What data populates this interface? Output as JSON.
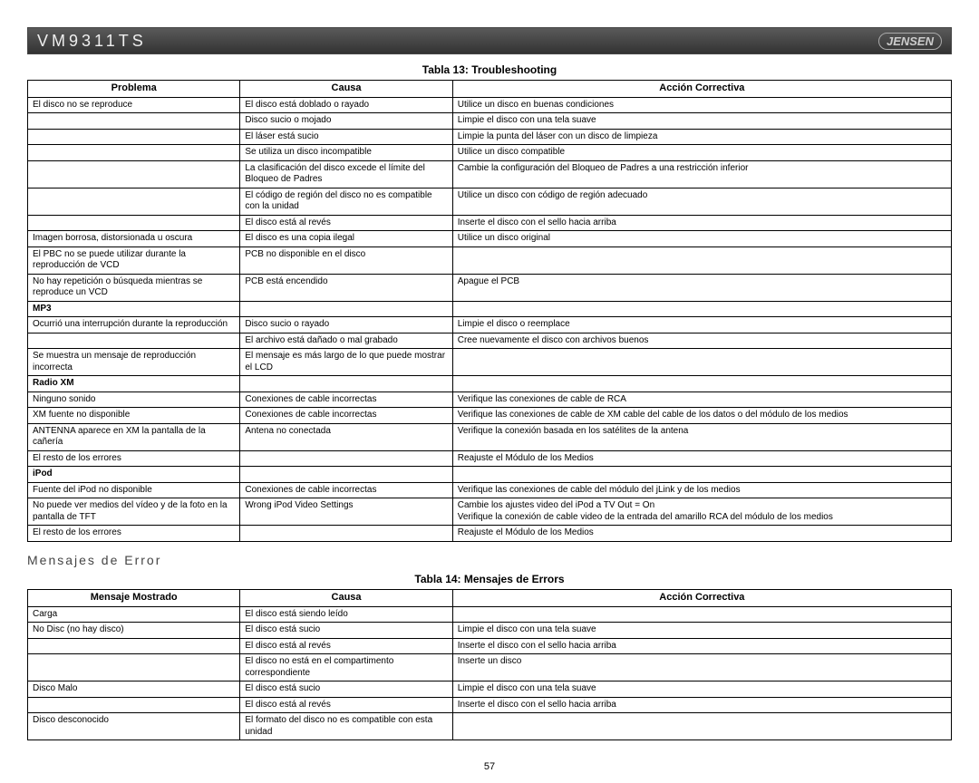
{
  "header": {
    "model": "VM9311TS",
    "logo": "JENSEN"
  },
  "table13": {
    "title": "Tabla 13: Troubleshooting",
    "columns": [
      "Problema",
      "Causa",
      "Acción Correctiva"
    ],
    "rows": [
      {
        "c": [
          "El disco no se reproduce",
          "El disco está doblado o rayado",
          "Utilice un disco en buenas condiciones"
        ]
      },
      {
        "c": [
          "",
          "Disco sucio o mojado",
          "Limpie el disco con una tela suave"
        ]
      },
      {
        "c": [
          "",
          "El láser está sucio",
          "Limpie la punta del láser con un disco de limpieza"
        ]
      },
      {
        "c": [
          "",
          "Se utiliza un disco incompatible",
          "Utilice un disco compatible"
        ]
      },
      {
        "c": [
          "",
          "La clasificación del disco excede el límite del Bloqueo de Padres",
          "Cambie la configuración del Bloqueo de Padres a una restricción inferior"
        ]
      },
      {
        "c": [
          "",
          "El código de región del disco no es compatible con la unidad",
          "Utilice un disco con código de región adecuado"
        ]
      },
      {
        "c": [
          "",
          "El disco está al revés",
          "Inserte el disco con el sello hacia arriba"
        ]
      },
      {
        "c": [
          "Imagen borrosa, distorsionada u oscura",
          "El disco es una copia ilegal",
          "Utilice un disco original"
        ]
      },
      {
        "c": [
          "El PBC no se puede utilizar durante la reproducción de VCD",
          "PCB no disponible en el disco",
          ""
        ]
      },
      {
        "c": [
          "No hay repetición o búsqueda mientras se reproduce un VCD",
          "PCB está encendido",
          "Apague el PCB"
        ]
      },
      {
        "section": true,
        "c": [
          "MP3",
          "",
          ""
        ]
      },
      {
        "c": [
          "Ocurrió una interrupción durante la reproducción",
          "Disco sucio o rayado",
          "Limpie el disco o reemplace"
        ]
      },
      {
        "c": [
          "",
          "El archivo está dañado o mal grabado",
          "Cree nuevamente el disco con archivos buenos"
        ]
      },
      {
        "c": [
          "Se muestra un mensaje de reproducción incorrecta",
          "El mensaje es más largo de lo que puede mostrar el LCD",
          ""
        ]
      },
      {
        "section": true,
        "c": [
          "Radio XM",
          "",
          ""
        ]
      },
      {
        "c": [
          "Ninguno sonido",
          "Conexiones de cable incorrectas",
          "Verifique las conexiones de cable de RCA"
        ]
      },
      {
        "c": [
          "XM fuente no disponible",
          "Conexiones de cable incorrectas",
          "Verifique las conexiones de cable de XM cable del cable de los datos o del módulo de los medios"
        ]
      },
      {
        "c": [
          "ANTENNA aparece en XM la pantalla de la cañería",
          "Antena no conectada",
          "Verifique la conexión basada en los satélites de la antena"
        ]
      },
      {
        "c": [
          "El resto de los errores",
          "",
          "Reajuste el Módulo de los Medios"
        ]
      },
      {
        "section": true,
        "c": [
          "iPod",
          "",
          ""
        ]
      },
      {
        "c": [
          "Fuente del iPod no disponible",
          "Conexiones de cable incorrectas",
          "Verifique las conexiones de cable del módulo del jLink y de los medios"
        ]
      },
      {
        "c": [
          "No puede ver medios del vídeo y de la foto en la pantalla de TFT",
          "Wrong iPod Video Settings",
          "Cambie los ajustes video del iPod a TV Out = On\nVerifique la conexión de cable video de la entrada del amarillo RCA del módulo de los medios"
        ]
      },
      {
        "c": [
          "El resto de los errores",
          "",
          "Reajuste el Módulo de los Medios"
        ]
      }
    ]
  },
  "subtitle": "Mensajes de Error",
  "table14": {
    "title": "Tabla 14: Mensajes de Errors",
    "columns": [
      "Mensaje Mostrado",
      "Causa",
      "Acción Correctiva"
    ],
    "rows": [
      {
        "c": [
          "Carga",
          "El disco está siendo leído",
          ""
        ]
      },
      {
        "c": [
          "No Disc (no hay disco)",
          "El disco está sucio",
          "Limpie el disco con una tela suave"
        ]
      },
      {
        "c": [
          "",
          "El disco está al revés",
          "Inserte el disco con el sello hacia arriba"
        ]
      },
      {
        "c": [
          "",
          "El disco no está en el compartimento correspondiente",
          "Inserte un disco"
        ]
      },
      {
        "c": [
          "Disco Malo",
          "El disco está sucio",
          "Limpie el disco con una tela suave"
        ]
      },
      {
        "c": [
          "",
          "El disco está al revés",
          "Inserte el disco con el sello hacia arriba"
        ]
      },
      {
        "c": [
          "Disco desconocido",
          "El formato del disco no es compatible con esta unidad",
          ""
        ]
      }
    ]
  },
  "pagenum": "57"
}
